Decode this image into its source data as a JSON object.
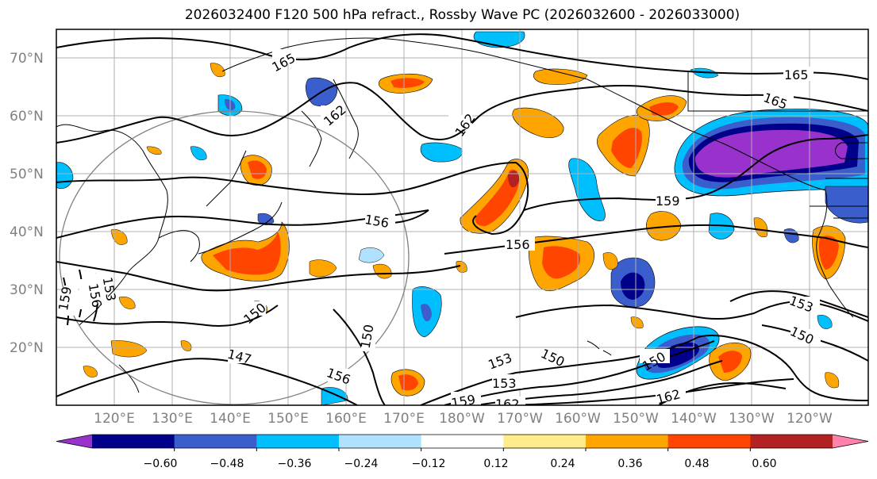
{
  "title": "2026032400 F120 500 hPa refract., Rossby Wave PC (2026032600 - 2026033000)",
  "latitude_labels": [
    "70°N",
    "60°N",
    "50°N",
    "40°N",
    "30°N",
    "20°N"
  ],
  "longitude_labels": [
    "120°E",
    "130°E",
    "140°E",
    "150°E",
    "160°E",
    "170°E",
    "180°W",
    "170°W",
    "160°W",
    "150°W",
    "140°W",
    "130°W",
    "120°W"
  ],
  "contour_labels": [
    "165",
    "162",
    "162",
    "165",
    "165",
    "159",
    "156",
    "156",
    "153",
    "156",
    "159",
    "150",
    "150",
    "147",
    "156",
    "153",
    "150",
    "153",
    "150",
    "159",
    "162",
    "162",
    "153",
    "150"
  ],
  "colorbar": {
    "colors": [
      "#9932cc",
      "#00008b",
      "#3a5fcd",
      "#00bfff",
      "#b0e2ff",
      "#ffffff",
      "#ffec8b",
      "#ffa500",
      "#ff4500",
      "#b22222",
      "#ff82ab"
    ],
    "tick_labels": [
      "−0.60",
      "−0.48",
      "−0.36",
      "−0.24",
      "−0.12",
      "0.12",
      "0.24",
      "0.36",
      "0.48",
      "0.60"
    ]
  },
  "map_data": {
    "projection": "cylindrical",
    "lon_range": [
      110,
      250
    ],
    "lat_range": [
      10,
      75
    ],
    "gridlines": true,
    "variable": "500 hPa refractivity (contours) and Rossby Wave PC (shaded)"
  }
}
